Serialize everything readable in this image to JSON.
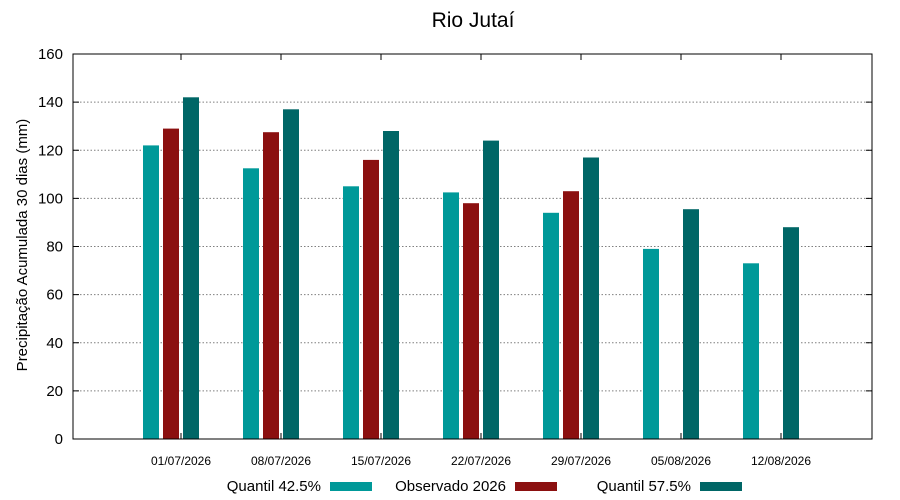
{
  "chart_data": {
    "type": "bar",
    "title": "Rio Jutaí",
    "xlabel": "",
    "ylabel": "Precipitação Acumulada 30 dias (mm)",
    "ylim": [
      0,
      160
    ],
    "yticks": [
      0,
      20,
      40,
      60,
      80,
      100,
      120,
      140,
      160
    ],
    "grid": true,
    "legend_position": "bottom",
    "categories": [
      "01/07/2026",
      "08/07/2026",
      "15/07/2026",
      "22/07/2026",
      "29/07/2026",
      "05/08/2026",
      "12/08/2026"
    ],
    "series": [
      {
        "name": "Quantil 42.5%",
        "color": "#009999",
        "values": [
          122,
          112.5,
          105,
          102.5,
          94,
          79,
          73
        ]
      },
      {
        "name": "Observado 2026",
        "color": "#8b1010",
        "values": [
          129,
          127.5,
          116,
          98,
          103,
          null,
          null
        ]
      },
      {
        "name": "Quantil 57.5%",
        "color": "#006666",
        "values": [
          142,
          137,
          128,
          124,
          117,
          95.5,
          88
        ]
      }
    ]
  }
}
